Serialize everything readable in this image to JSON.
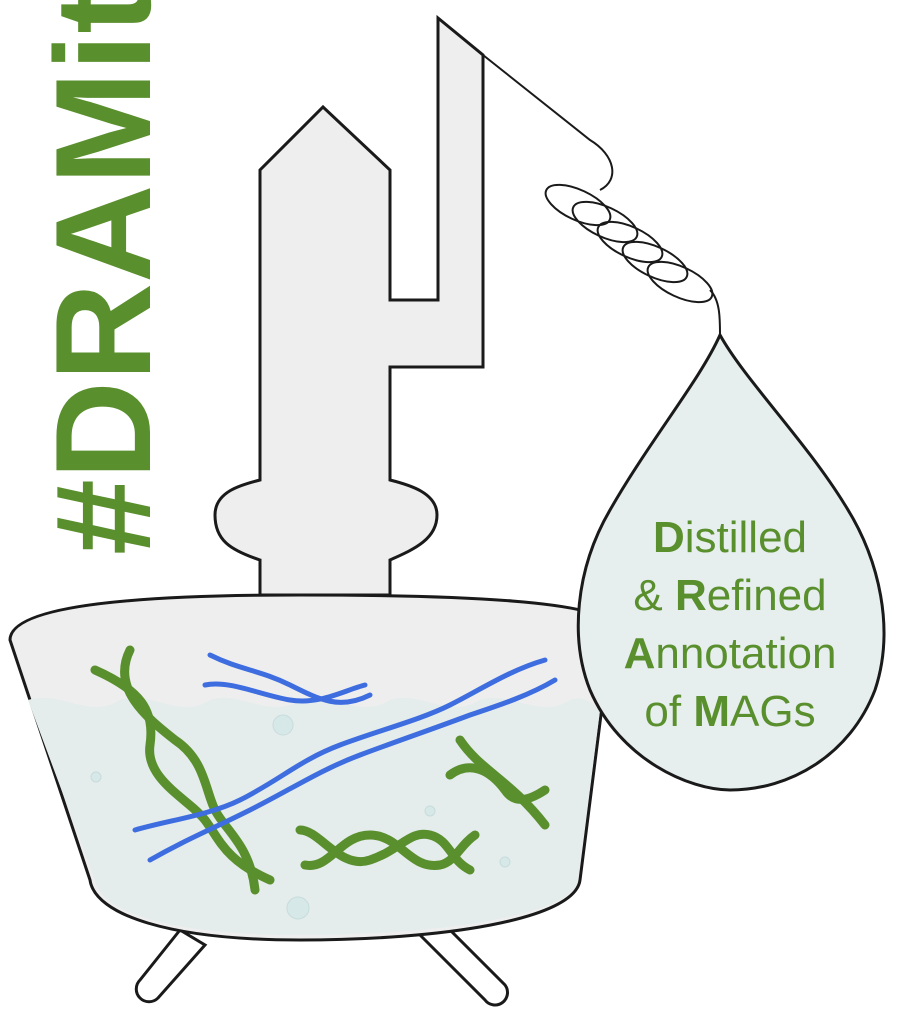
{
  "hashtag": "#DRAMit",
  "acronym": {
    "lines": [
      {
        "initial": "D",
        "rest": "istilled",
        "prefix": ""
      },
      {
        "initial": "R",
        "rest": "efined",
        "prefix": "& "
      },
      {
        "initial": "A",
        "rest": "nnotation",
        "prefix": ""
      },
      {
        "initial": "M",
        "rest": "AGs",
        "prefix": "of "
      }
    ]
  },
  "colors": {
    "green_text": "#5a8f2e",
    "green_dna": "#5a8f2e",
    "blue_dna": "#3e6de0",
    "apparatus_fill": "#eeeeee",
    "liquid_fill": "#e6eeee",
    "outline": "#1a1a1a"
  },
  "icons": [
    "distillation-still-icon",
    "coil-condenser-icon",
    "droplet-icon",
    "dna-helix-icon",
    "bubble-icon"
  ]
}
